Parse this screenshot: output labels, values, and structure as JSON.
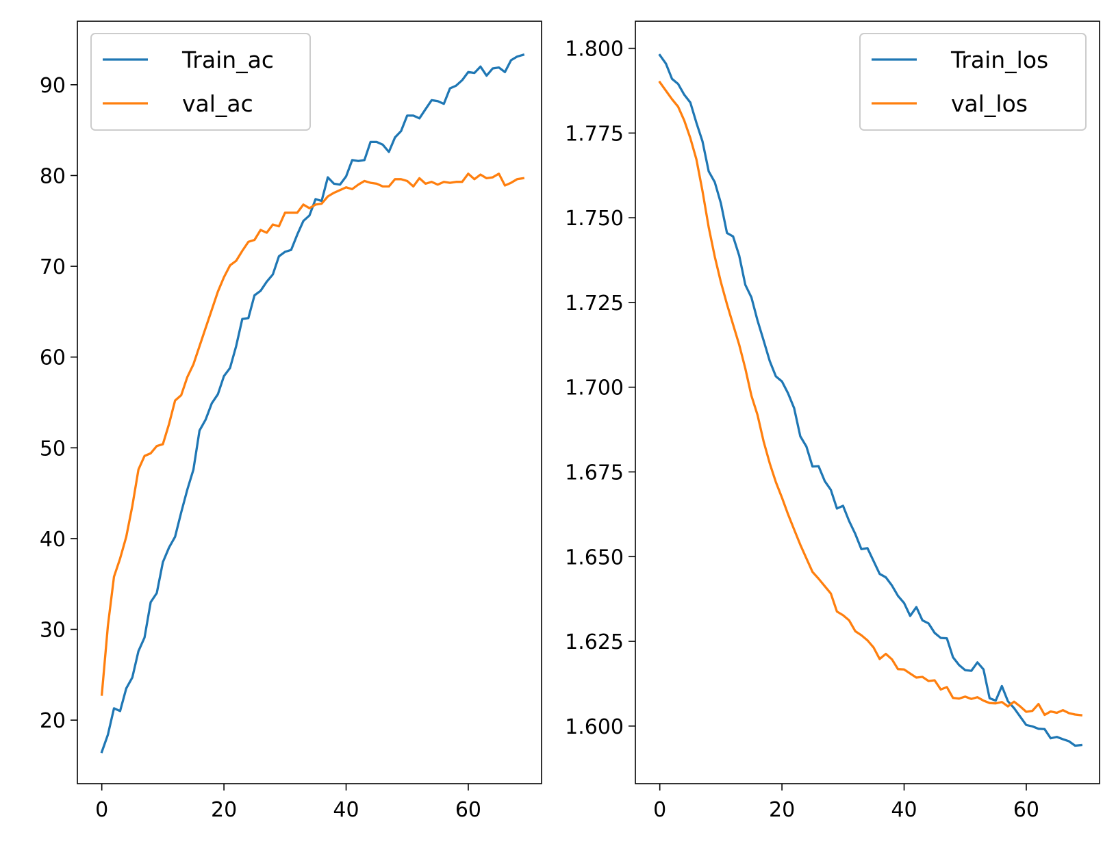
{
  "chart_data": [
    {
      "type": "line",
      "title": "",
      "xlabel": "",
      "ylabel": "",
      "xlim": [
        -4,
        72
      ],
      "ylim": [
        13,
        97
      ],
      "xticks": [
        0,
        20,
        40,
        60
      ],
      "xtick_labels": [
        "0",
        "20",
        "40",
        "60"
      ],
      "yticks": [
        20,
        30,
        40,
        50,
        60,
        70,
        80,
        90
      ],
      "ytick_labels": [
        "20",
        "30",
        "40",
        "50",
        "60",
        "70",
        "80",
        "90"
      ],
      "grid": false,
      "legend_position": "upper-left",
      "x": [
        0,
        1,
        2,
        3,
        4,
        5,
        6,
        7,
        8,
        9,
        10,
        11,
        12,
        13,
        14,
        15,
        16,
        17,
        18,
        19,
        20,
        21,
        22,
        23,
        24,
        25,
        26,
        27,
        28,
        29,
        30,
        31,
        32,
        33,
        34,
        35,
        36,
        37,
        38,
        39,
        40,
        41,
        42,
        43,
        44,
        45,
        46,
        47,
        48,
        49,
        50,
        51,
        52,
        53,
        54,
        55,
        56,
        57,
        58,
        59,
        60,
        61,
        62,
        63,
        64,
        65,
        66,
        67,
        68,
        69
      ],
      "series": [
        {
          "name": "Train_ac",
          "color": "#1f77b4",
          "values": [
            16.5,
            18.4,
            21.3,
            21,
            23.5,
            24.7,
            27.6,
            29.1,
            33,
            34,
            37.4,
            39,
            40.2,
            42.9,
            45.4,
            47.6,
            51.9,
            53.1,
            54.9,
            55.9,
            57.9,
            58.8,
            61.2,
            64.2,
            64.3,
            66.8,
            67.3,
            68.3,
            69.1,
            71.1,
            71.6,
            71.8,
            73.5,
            75,
            75.6,
            77.4,
            77.2,
            79.8,
            79.1,
            79,
            79.9,
            81.7,
            81.6,
            81.7,
            83.7,
            83.7,
            83.4,
            82.6,
            84.2,
            84.9,
            86.6,
            86.6,
            86.3,
            87.3,
            88.3,
            88.2,
            87.9,
            89.6,
            89.9,
            90.5,
            91.4,
            91.3,
            92,
            91,
            91.8,
            91.9,
            91.4,
            92.7,
            93.1,
            93.3
          ]
        },
        {
          "name": "val_ac",
          "color": "#ff7f0e",
          "values": [
            22.8,
            30.4,
            35.8,
            37.8,
            40.2,
            43.6,
            47.6,
            49.1,
            49.4,
            50.2,
            50.4,
            52.6,
            55.2,
            55.8,
            57.8,
            59.2,
            61.2,
            63.2,
            65.2,
            67.2,
            68.8,
            70.1,
            70.6,
            71.7,
            72.7,
            72.9,
            74,
            73.7,
            74.6,
            74.4,
            75.9,
            75.9,
            75.9,
            76.8,
            76.4,
            76.8,
            76.9,
            77.7,
            78.1,
            78.4,
            78.7,
            78.5,
            79,
            79.4,
            79.2,
            79.1,
            78.8,
            78.8,
            79.6,
            79.6,
            79.4,
            78.8,
            79.7,
            79.1,
            79.3,
            79,
            79.3,
            79.2,
            79.3,
            79.3,
            80.2,
            79.6,
            80.1,
            79.7,
            79.8,
            80.2,
            78.9,
            79.2,
            79.6,
            79.7
          ]
        }
      ]
    },
    {
      "type": "line",
      "title": "",
      "xlabel": "",
      "ylabel": "",
      "xlim": [
        -4,
        72
      ],
      "ylim": [
        1.583,
        1.808
      ],
      "xticks": [
        0,
        20,
        40,
        60
      ],
      "xtick_labels": [
        "0",
        "20",
        "40",
        "60"
      ],
      "yticks": [
        1.6,
        1.625,
        1.65,
        1.675,
        1.7,
        1.725,
        1.75,
        1.775,
        1.8
      ],
      "ytick_labels": [
        "1.600",
        "1.625",
        "1.650",
        "1.675",
        "1.700",
        "1.725",
        "1.750",
        "1.775",
        "1.800"
      ],
      "grid": false,
      "legend_position": "upper-right",
      "x": [
        0,
        1,
        2,
        3,
        4,
        5,
        6,
        7,
        8,
        9,
        10,
        11,
        12,
        13,
        14,
        15,
        16,
        17,
        18,
        19,
        20,
        21,
        22,
        23,
        24,
        25,
        26,
        27,
        28,
        29,
        30,
        31,
        32,
        33,
        34,
        35,
        36,
        37,
        38,
        39,
        40,
        41,
        42,
        43,
        44,
        45,
        46,
        47,
        48,
        49,
        50,
        51,
        52,
        53,
        54,
        55,
        56,
        57,
        58,
        59,
        60,
        61,
        62,
        63,
        64,
        65,
        66,
        67,
        68,
        69
      ],
      "series": [
        {
          "name": "Train_los",
          "color": "#1f77b4",
          "values": [
            1.798,
            1.7955,
            1.791,
            1.7895,
            1.7863,
            1.784,
            1.778,
            1.7725,
            1.7637,
            1.7605,
            1.7543,
            1.7455,
            1.7445,
            1.7388,
            1.7302,
            1.7265,
            1.7197,
            1.7138,
            1.7077,
            1.7032,
            1.7017,
            1.6982,
            1.6938,
            1.6855,
            1.6825,
            1.6766,
            1.6767,
            1.6723,
            1.6697,
            1.6642,
            1.665,
            1.6605,
            1.6567,
            1.6522,
            1.6525,
            1.6487,
            1.6449,
            1.6439,
            1.6415,
            1.6384,
            1.6363,
            1.6325,
            1.6351,
            1.6312,
            1.6303,
            1.6275,
            1.626,
            1.6259,
            1.6203,
            1.618,
            1.6165,
            1.6163,
            1.6188,
            1.6167,
            1.6082,
            1.6075,
            1.6118,
            1.6073,
            1.6053,
            1.6028,
            1.6003,
            1.5999,
            1.5992,
            1.5991,
            1.5964,
            1.5968,
            1.5961,
            1.5955,
            1.5942,
            1.5944
          ]
        },
        {
          "name": "val_los",
          "color": "#ff7f0e",
          "values": [
            1.79,
            1.7875,
            1.785,
            1.7828,
            1.7787,
            1.7735,
            1.7672,
            1.7578,
            1.7472,
            1.7385,
            1.731,
            1.7245,
            1.7185,
            1.7125,
            1.7055,
            1.6975,
            1.6918,
            1.684,
            1.6775,
            1.672,
            1.6674,
            1.6625,
            1.658,
            1.6535,
            1.6495,
            1.6455,
            1.6435,
            1.6413,
            1.6391,
            1.6338,
            1.6327,
            1.6312,
            1.628,
            1.6268,
            1.6253,
            1.6232,
            1.6198,
            1.6213,
            1.6197,
            1.6168,
            1.6167,
            1.6155,
            1.6143,
            1.6145,
            1.6133,
            1.6135,
            1.6108,
            1.6115,
            1.6083,
            1.6081,
            1.6087,
            1.608,
            1.6085,
            1.6075,
            1.6068,
            1.6067,
            1.6071,
            1.6058,
            1.6072,
            1.6058,
            1.6042,
            1.6045,
            1.6065,
            1.6033,
            1.6043,
            1.6039,
            1.6047,
            1.6038,
            1.6034,
            1.6032
          ]
        }
      ]
    }
  ]
}
